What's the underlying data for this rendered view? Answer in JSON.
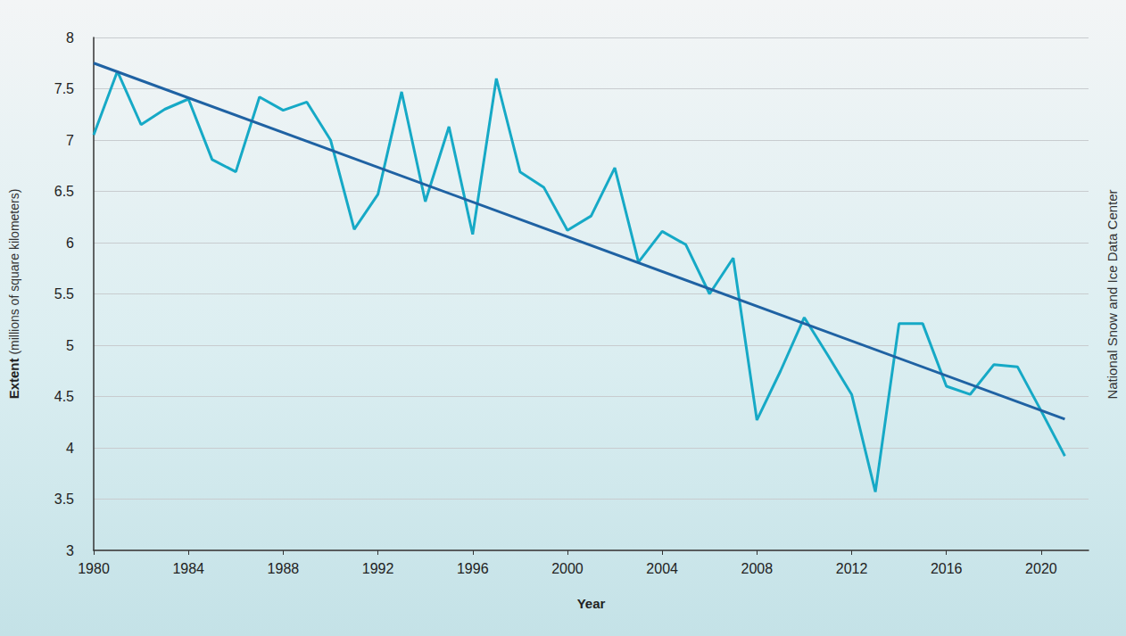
{
  "chart_data": {
    "type": "line",
    "x_label": "Year",
    "y_label": "Extent (millions of square kilometers)",
    "source": "National Snow and Ice Data Center",
    "x": [
      1980,
      1981,
      1982,
      1983,
      1984,
      1985,
      1986,
      1987,
      1988,
      1989,
      1990,
      1991,
      1992,
      1993,
      1994,
      1995,
      1996,
      1997,
      1998,
      1999,
      2000,
      2001,
      2002,
      2003,
      2004,
      2005,
      2006,
      2007,
      2008,
      2009,
      2010,
      2011,
      2012,
      2013,
      2014,
      2015,
      2016,
      2017,
      2018,
      2019,
      2020,
      2021
    ],
    "series": [
      {
        "color": "#16a9c6",
        "values": [
          7.05,
          7.67,
          7.15,
          7.3,
          7.4,
          6.81,
          6.69,
          7.42,
          7.29,
          7.37,
          7.0,
          6.13,
          6.47,
          7.47,
          6.4,
          7.13,
          6.08,
          7.6,
          6.69,
          6.54,
          6.12,
          6.26,
          6.73,
          5.81,
          6.11,
          5.98,
          5.5,
          5.85,
          4.27,
          4.75,
          5.27,
          4.9,
          4.52,
          3.57,
          5.21,
          5.21,
          4.6,
          4.52,
          4.81,
          4.79,
          4.36,
          3.92
        ]
      },
      {
        "color": "#1f62a3",
        "x": [
          1980,
          2021
        ],
        "values": [
          7.75,
          4.28
        ]
      }
    ],
    "xlim": [
      1980,
      2022
    ],
    "xticks": [
      1980,
      1984,
      1988,
      1992,
      1996,
      2000,
      2004,
      2008,
      2012,
      2016,
      2020
    ],
    "ylim": [
      3,
      8
    ],
    "yticks": [
      3,
      3.5,
      4,
      4.5,
      5,
      5.5,
      6,
      6.5,
      7,
      7.5,
      8
    ],
    "grid": true
  }
}
